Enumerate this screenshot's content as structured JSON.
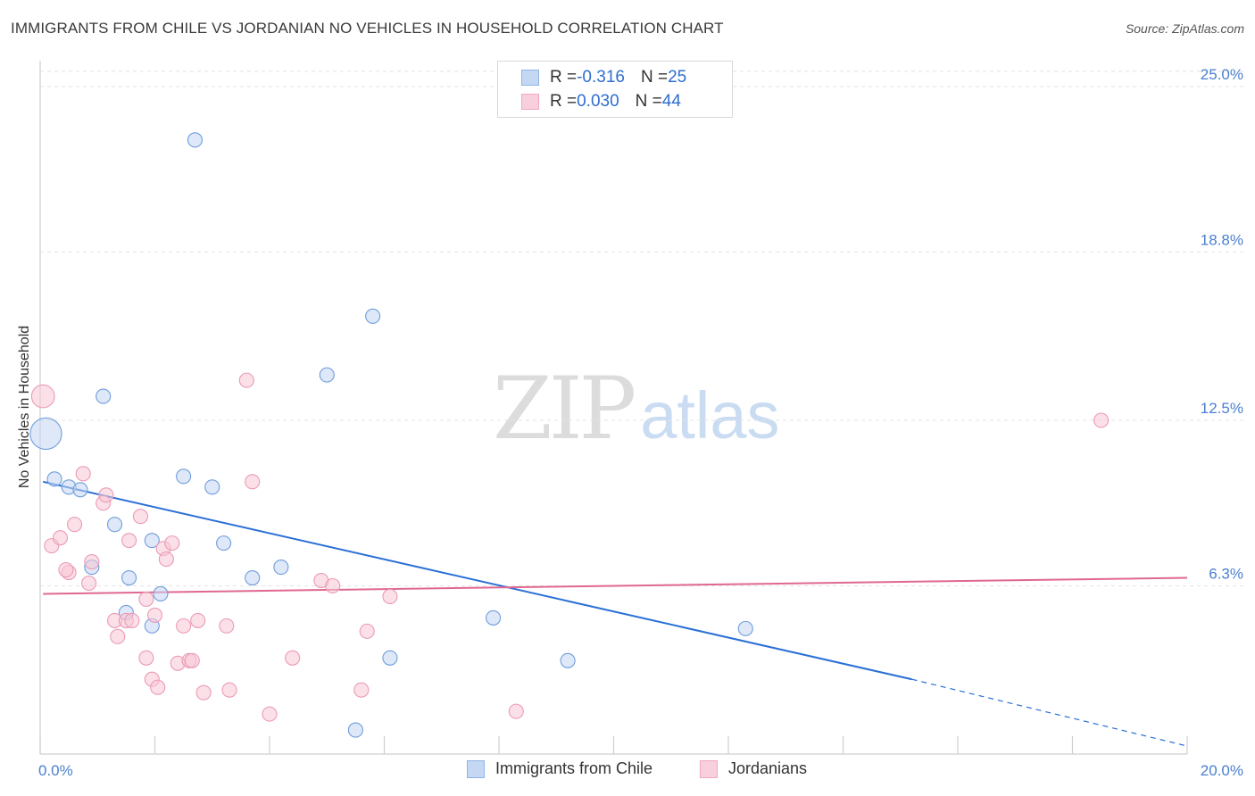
{
  "title": "IMMIGRANTS FROM CHILE VS JORDANIAN NO VEHICLES IN HOUSEHOLD CORRELATION CHART",
  "source": "Source: ZipAtlas.com",
  "watermark": {
    "zip": "ZIP",
    "atlas": "atlas"
  },
  "legend": {
    "rows": [
      {
        "r_label": "R = ",
        "r_value": "-0.316",
        "n_label": "N = ",
        "n_value": "25"
      },
      {
        "r_label": "R = ",
        "r_value": "0.030",
        "n_label": "N = ",
        "n_value": "44"
      }
    ]
  },
  "bottom_legend": [
    "Immigrants from Chile",
    "Jordanians"
  ],
  "chart_data": {
    "type": "scatter",
    "title": "IMMIGRANTS FROM CHILE VS JORDANIAN NO VEHICLES IN HOUSEHOLD CORRELATION CHART",
    "ylabel": "No Vehicles in Household",
    "xlabel": "",
    "xlim": [
      0,
      20
    ],
    "ylim": [
      0,
      25.0
    ],
    "x_tick_labels": [
      "0.0%",
      "20.0%"
    ],
    "y_ticks": [
      6.3,
      12.5,
      18.8,
      25.0
    ],
    "y_tick_labels": [
      "6.3%",
      "12.5%",
      "18.8%",
      "25.0%"
    ],
    "grid": true,
    "colors": {
      "chile": "#8fb4e8",
      "jordan": "#f2a7c0",
      "chile_line": "#2a6fd6",
      "jordan_line": "#e06890"
    },
    "series": [
      {
        "name": "Immigrants from Chile",
        "points": [
          [
            0.1,
            12.0,
            2.2
          ],
          [
            0.25,
            10.3,
            1
          ],
          [
            0.5,
            10.0,
            1
          ],
          [
            0.7,
            9.9,
            1
          ],
          [
            0.9,
            7.0,
            1
          ],
          [
            1.1,
            13.4,
            1
          ],
          [
            1.3,
            8.6,
            1
          ],
          [
            1.55,
            6.6,
            1
          ],
          [
            1.5,
            5.3,
            1
          ],
          [
            1.95,
            8.0,
            1
          ],
          [
            1.95,
            4.8,
            1
          ],
          [
            2.1,
            6.0,
            1
          ],
          [
            2.5,
            10.4,
            1
          ],
          [
            2.7,
            23.0,
            1
          ],
          [
            3.0,
            10.0,
            1
          ],
          [
            3.2,
            7.9,
            1
          ],
          [
            3.7,
            6.6,
            1
          ],
          [
            4.2,
            7.0,
            1
          ],
          [
            5.0,
            14.2,
            1
          ],
          [
            5.8,
            16.4,
            1
          ],
          [
            6.1,
            3.6,
            1
          ],
          [
            5.5,
            0.9,
            1
          ],
          [
            7.9,
            5.1,
            1
          ],
          [
            9.2,
            3.5,
            1
          ],
          [
            12.3,
            4.7,
            1
          ]
        ],
        "trend": {
          "x0": 0.05,
          "y0": 10.2,
          "x1": 15.2,
          "y1": 2.8,
          "dash_to_x": 20.0,
          "dash_to_y": 0.3
        }
      },
      {
        "name": "Jordanians",
        "points": [
          [
            0.05,
            13.4,
            1.6
          ],
          [
            0.2,
            7.8,
            1
          ],
          [
            0.35,
            8.1,
            1
          ],
          [
            0.5,
            6.8,
            1
          ],
          [
            0.45,
            6.9,
            1
          ],
          [
            0.6,
            8.6,
            1
          ],
          [
            0.75,
            10.5,
            1
          ],
          [
            0.85,
            6.4,
            1
          ],
          [
            0.9,
            7.2,
            1
          ],
          [
            1.1,
            9.4,
            1
          ],
          [
            1.15,
            9.7,
            1
          ],
          [
            1.3,
            5.0,
            1
          ],
          [
            1.35,
            4.4,
            1
          ],
          [
            1.5,
            5.0,
            1
          ],
          [
            1.55,
            8.0,
            1
          ],
          [
            1.6,
            5.0,
            1
          ],
          [
            1.75,
            8.9,
            1
          ],
          [
            1.85,
            3.6,
            1
          ],
          [
            1.85,
            5.8,
            1
          ],
          [
            1.95,
            2.8,
            1
          ],
          [
            2.0,
            5.2,
            1
          ],
          [
            2.05,
            2.5,
            1
          ],
          [
            2.15,
            7.7,
            1
          ],
          [
            2.2,
            7.3,
            1
          ],
          [
            2.3,
            7.9,
            1
          ],
          [
            2.4,
            3.4,
            1
          ],
          [
            2.5,
            4.8,
            1
          ],
          [
            2.6,
            3.5,
            1
          ],
          [
            2.65,
            3.5,
            1
          ],
          [
            2.75,
            5.0,
            1
          ],
          [
            2.85,
            2.3,
            1
          ],
          [
            3.25,
            4.8,
            1
          ],
          [
            3.3,
            2.4,
            1
          ],
          [
            3.6,
            14.0,
            1
          ],
          [
            3.7,
            10.2,
            1
          ],
          [
            4.0,
            1.5,
            1
          ],
          [
            4.4,
            3.6,
            1
          ],
          [
            4.9,
            6.5,
            1
          ],
          [
            5.1,
            6.3,
            1
          ],
          [
            5.6,
            2.4,
            1
          ],
          [
            5.7,
            4.6,
            1
          ],
          [
            6.1,
            5.9,
            1
          ],
          [
            8.3,
            1.6,
            1
          ],
          [
            18.5,
            12.5,
            1
          ]
        ],
        "trend": {
          "x0": 0.05,
          "y0": 6.0,
          "x1": 20.0,
          "y1": 6.6
        }
      }
    ]
  }
}
